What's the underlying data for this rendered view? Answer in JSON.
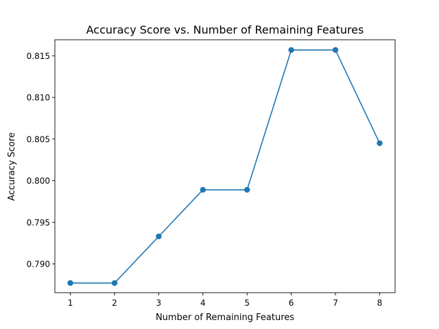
{
  "chart_data": {
    "type": "line",
    "title": "Accuracy Score vs. Number of Remaining Features",
    "xlabel": "Number of Remaining Features",
    "ylabel": "Accuracy Score",
    "x": [
      1,
      2,
      3,
      4,
      5,
      6,
      7,
      8
    ],
    "series": [
      {
        "values": [
          0.7877,
          0.7877,
          0.7933,
          0.7989,
          0.7989,
          0.8157,
          0.8157,
          0.8045
        ],
        "color": "#1f77b4",
        "marker": "circle"
      }
    ],
    "xticks": [
      1,
      2,
      3,
      4,
      5,
      6,
      7,
      8
    ],
    "xtick_labels": [
      "1",
      "2",
      "3",
      "4",
      "5",
      "6",
      "7",
      "8"
    ],
    "yticks": [
      0.79,
      0.795,
      0.8,
      0.805,
      0.81,
      0.815
    ],
    "ytick_labels": [
      "0.790",
      "0.795",
      "0.800",
      "0.805",
      "0.810",
      "0.815"
    ],
    "xlim": [
      0.65,
      8.35
    ],
    "ylim": [
      0.78654,
      0.81693
    ],
    "grid": false,
    "legend": false
  }
}
